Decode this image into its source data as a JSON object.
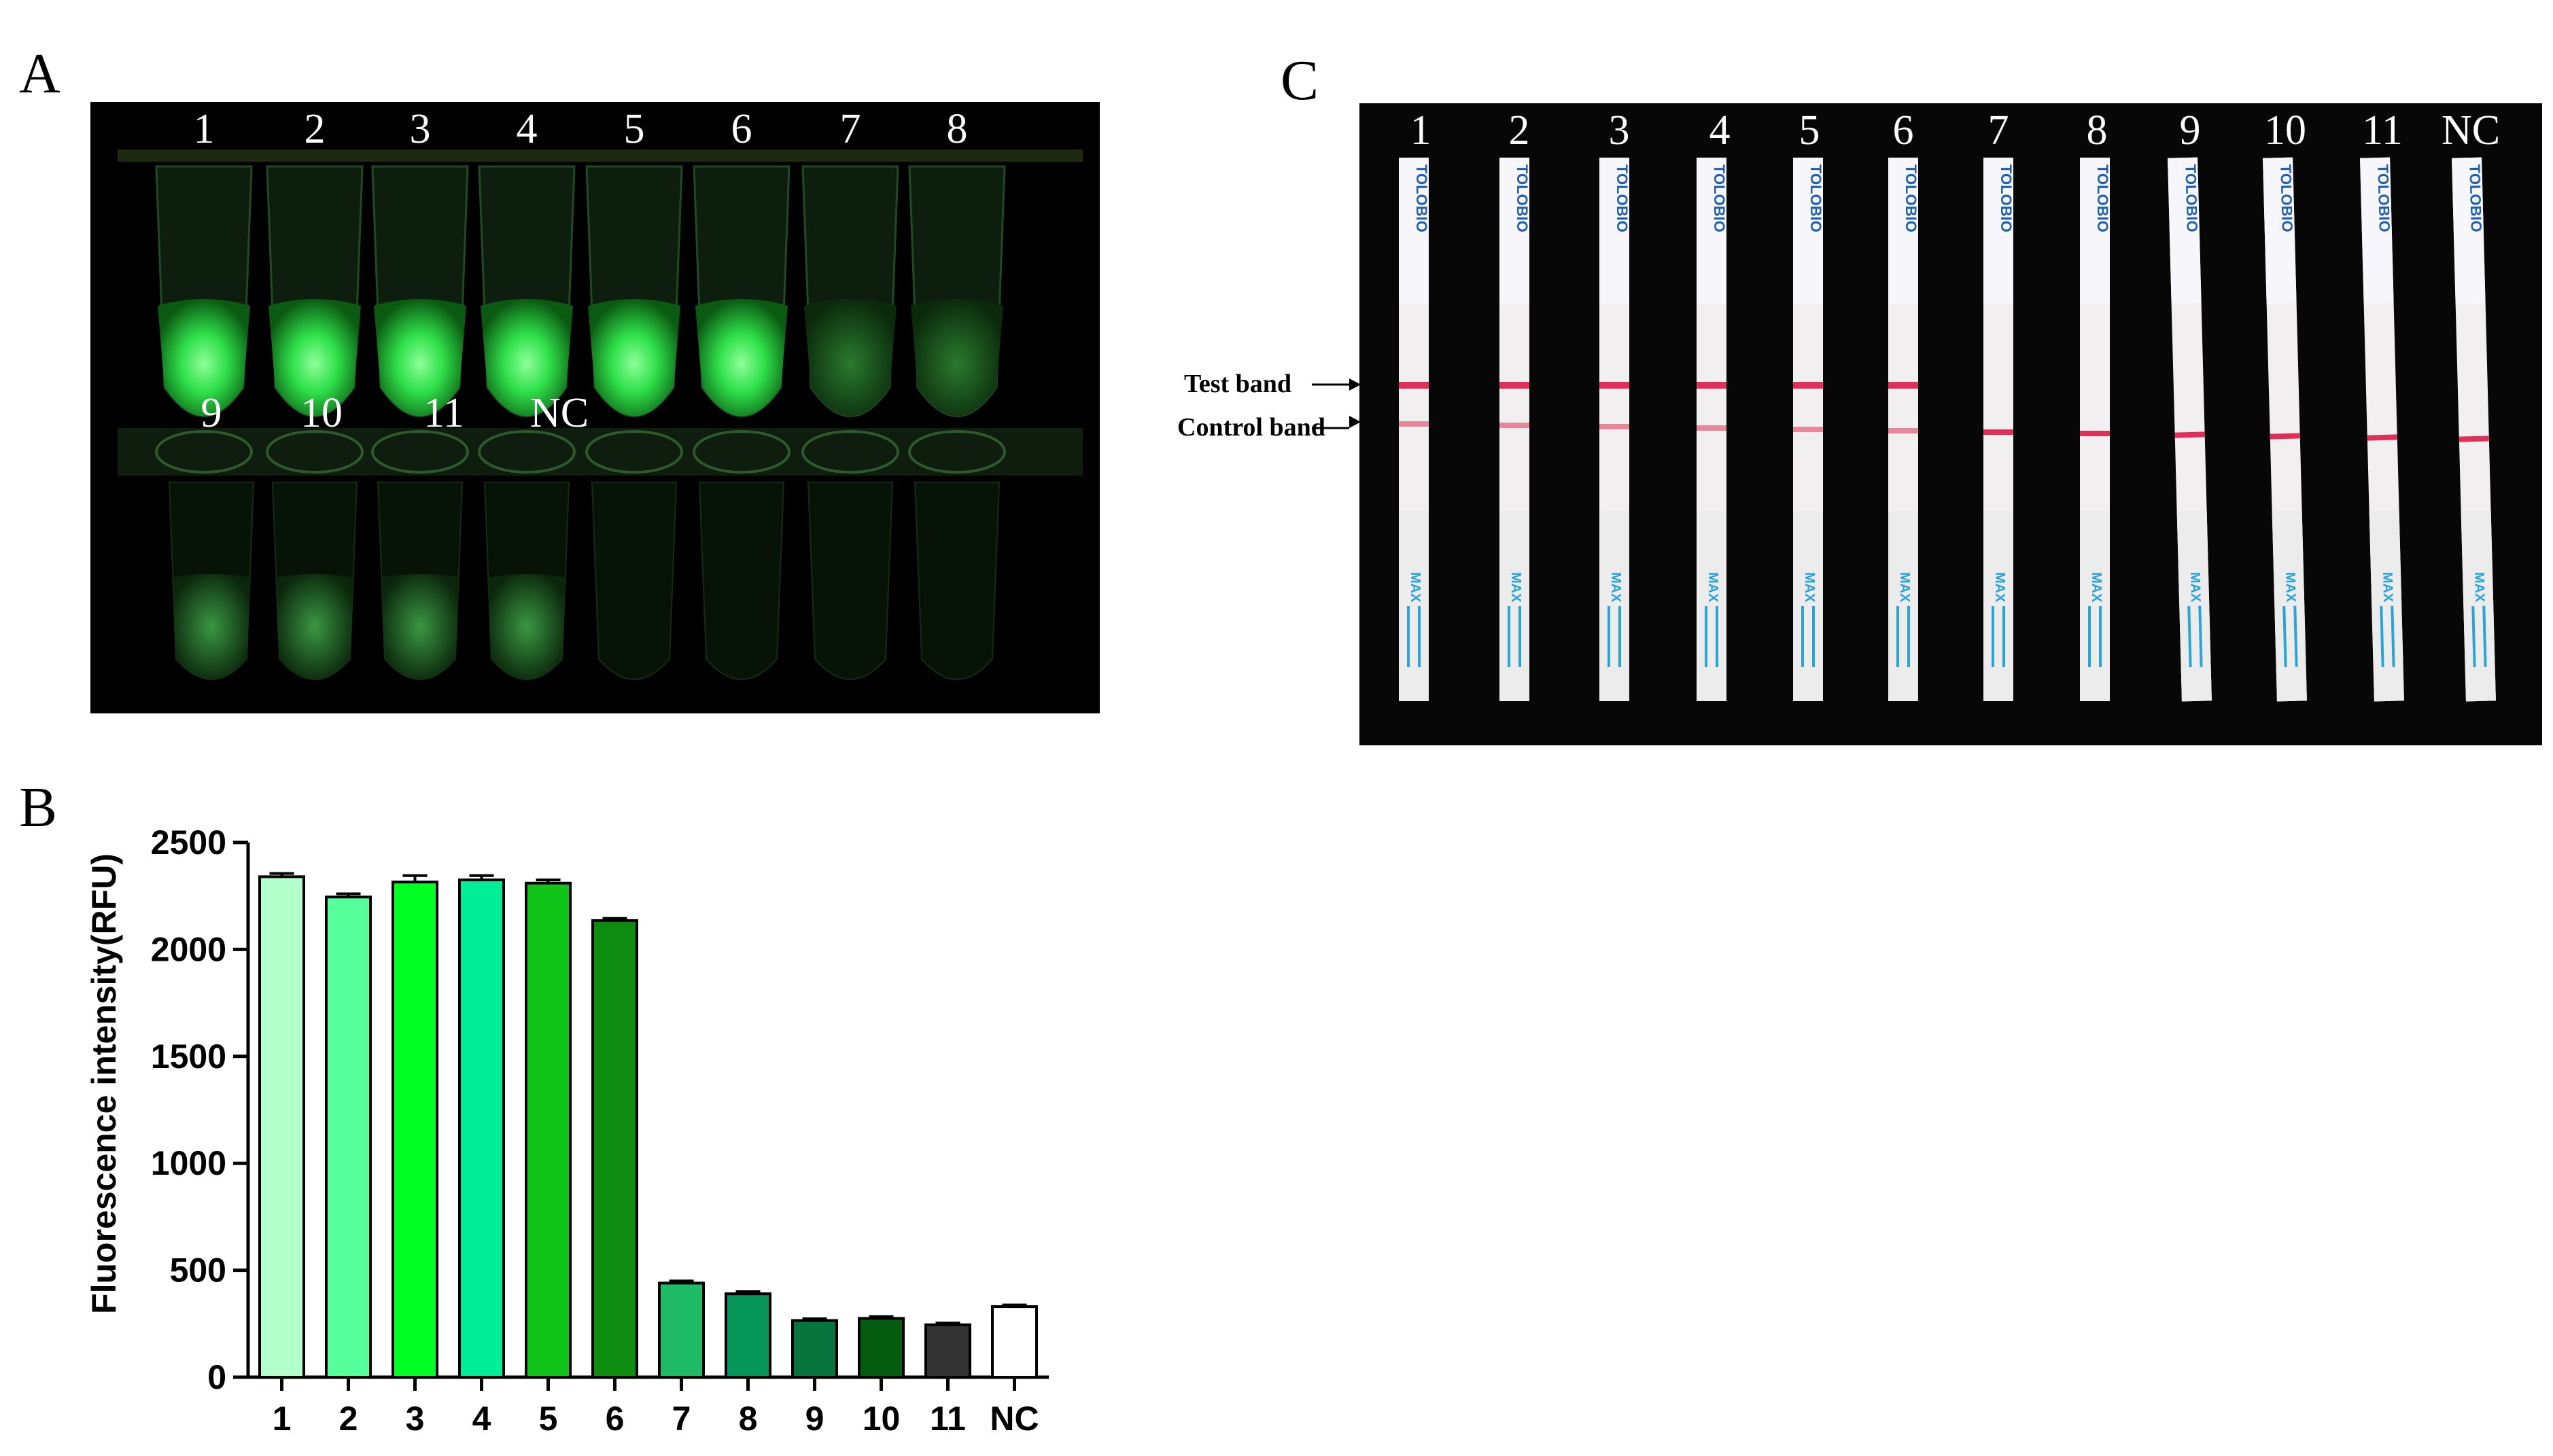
{
  "panels": {
    "a": "A",
    "b": "B",
    "c": "C"
  },
  "panel_a": {
    "tube_labels_top": [
      "1",
      "2",
      "3",
      "4",
      "5",
      "6",
      "7",
      "8"
    ],
    "tube_labels_bottom": [
      "9",
      "10",
      "11",
      "NC"
    ],
    "glow_color": "#2fe04a"
  },
  "panel_c": {
    "strip_labels": [
      "1",
      "2",
      "3",
      "4",
      "5",
      "6",
      "7",
      "8",
      "9",
      "10",
      "11",
      "NC"
    ],
    "test_band_label": "Test band",
    "control_band_label": "Control band",
    "brand_text": "TOLOBIO",
    "max_text": "MAX",
    "band_color": "#e0305a",
    "test_band_present": [
      true,
      true,
      true,
      true,
      true,
      true,
      false,
      false,
      false,
      false,
      false,
      false
    ]
  },
  "chart_data": {
    "type": "bar",
    "categories": [
      "1",
      "2",
      "3",
      "4",
      "5",
      "6",
      "7",
      "8",
      "9",
      "10",
      "11",
      "NC"
    ],
    "values": [
      2340,
      2245,
      2315,
      2325,
      2310,
      2135,
      440,
      390,
      265,
      275,
      245,
      330
    ],
    "errors": [
      15,
      15,
      30,
      20,
      15,
      10,
      10,
      10,
      8,
      8,
      8,
      8
    ],
    "colors": [
      "#b3ffcc",
      "#55ff99",
      "#00ff22",
      "#00ee99",
      "#11c41a",
      "#0d8c10",
      "#1eba66",
      "#06965a",
      "#06743c",
      "#035c10",
      "#333333",
      "#ffffff"
    ],
    "ylabel": "Fluorescence intensity(RFU)",
    "xlabel": "",
    "ylim": [
      0,
      2500
    ],
    "yticks": [
      "0",
      "500",
      "1000",
      "1500",
      "2000",
      "2500"
    ],
    "ytick_values": [
      0,
      500,
      1000,
      1500,
      2000,
      2500
    ]
  }
}
